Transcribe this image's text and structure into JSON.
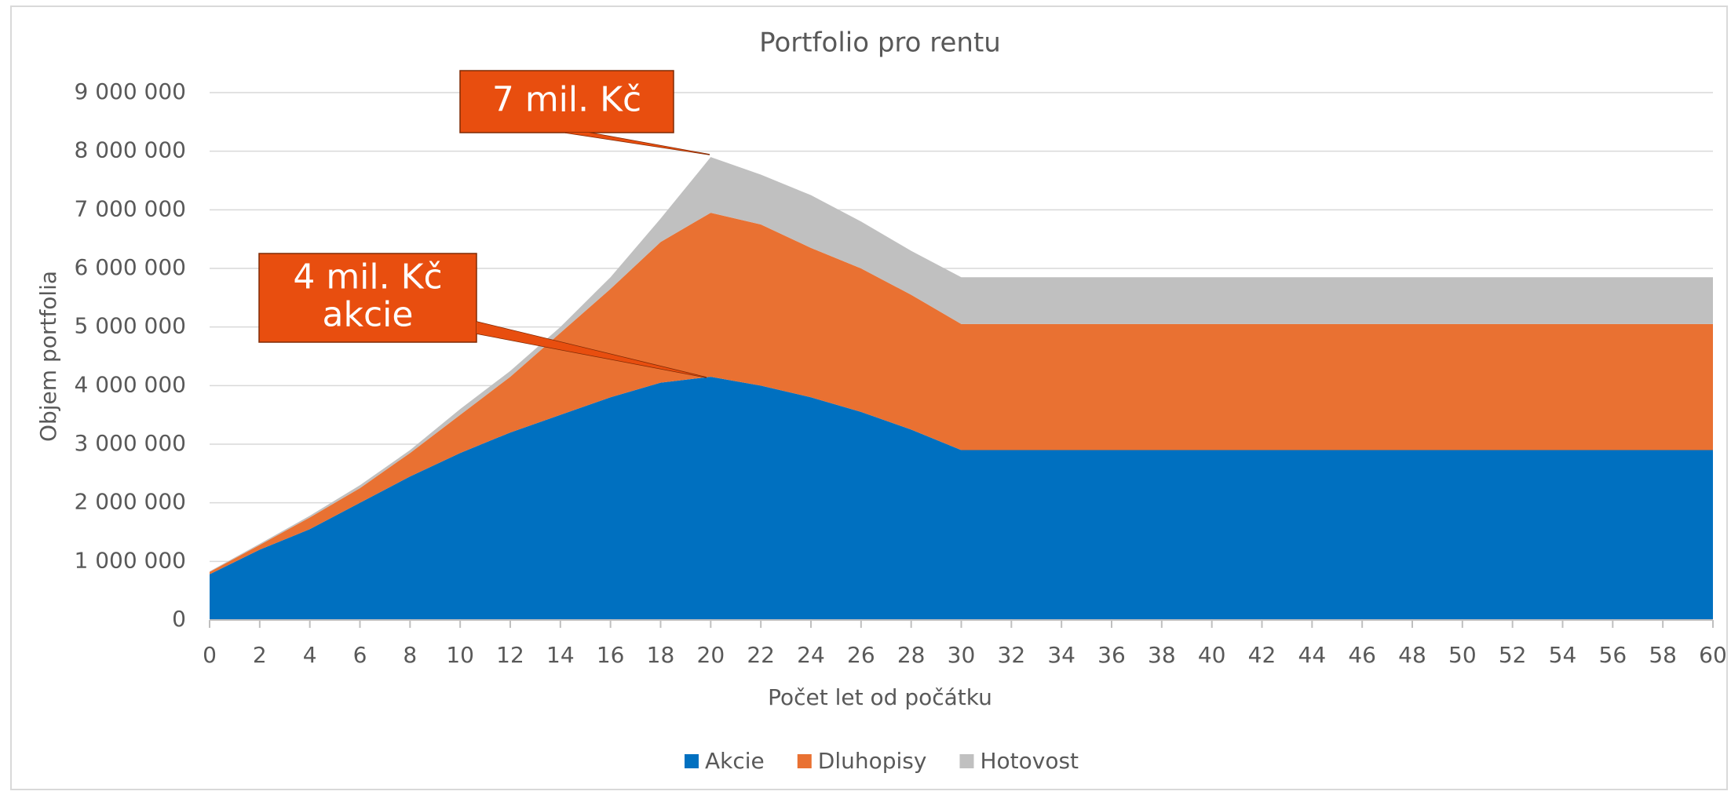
{
  "chart_data": {
    "type": "stacked_area",
    "title": "Portfolio pro rentu",
    "x_label": "Počet let od počátku",
    "y_label": "Objem portfolia",
    "x": [
      0,
      2,
      4,
      6,
      8,
      10,
      12,
      14,
      16,
      18,
      20,
      22,
      24,
      26,
      28,
      30,
      32,
      34,
      36,
      38,
      40,
      42,
      44,
      46,
      48,
      50,
      52,
      54,
      56,
      58,
      60
    ],
    "series": [
      {
        "name": "Akcie",
        "color": "#0070c0",
        "values": [
          780000,
          1200000,
          1550000,
          2000000,
          2450000,
          2850000,
          3200000,
          3500000,
          3800000,
          4050000,
          4150000,
          4000000,
          3800000,
          3550000,
          3250000,
          2900000,
          2900000,
          2900000,
          2900000,
          2900000,
          2900000,
          2900000,
          2900000,
          2900000,
          2900000,
          2900000,
          2900000,
          2900000,
          2900000,
          2900000,
          2900000
        ]
      },
      {
        "name": "Dluhopisy",
        "color": "#e97132",
        "values": [
          40000,
          80000,
          200000,
          250000,
          400000,
          650000,
          950000,
          1400000,
          1850000,
          2400000,
          2800000,
          2750000,
          2550000,
          2450000,
          2300000,
          2150000,
          2150000,
          2150000,
          2150000,
          2150000,
          2150000,
          2150000,
          2150000,
          2150000,
          2150000,
          2150000,
          2150000,
          2150000,
          2150000,
          2150000,
          2150000
        ]
      },
      {
        "name": "Hotovost",
        "color": "#c0c0c0",
        "values": [
          10000,
          20000,
          30000,
          50000,
          50000,
          100000,
          100000,
          100000,
          200000,
          400000,
          950000,
          850000,
          900000,
          800000,
          750000,
          800000,
          800000,
          800000,
          800000,
          800000,
          800000,
          800000,
          800000,
          800000,
          800000,
          800000,
          800000,
          800000,
          800000,
          800000,
          800000
        ]
      }
    ],
    "xlim": [
      0,
      60
    ],
    "xticks": [
      0,
      2,
      4,
      6,
      8,
      10,
      12,
      14,
      16,
      18,
      20,
      22,
      24,
      26,
      28,
      30,
      32,
      34,
      36,
      38,
      40,
      42,
      44,
      46,
      48,
      50,
      52,
      54,
      56,
      58,
      60
    ],
    "ylim": [
      0,
      9000000
    ],
    "yticks": [
      0,
      {
        "value": 1000000,
        "label": "1 000 000"
      },
      {
        "value": 2000000,
        "label": "2 000 000"
      },
      {
        "value": 3000000,
        "label": "3 000 000"
      },
      {
        "value": 4000000,
        "label": "4 000 000"
      },
      {
        "value": 5000000,
        "label": "5 000 000"
      },
      {
        "value": 6000000,
        "label": "6 000 000"
      },
      {
        "value": 7000000,
        "label": "7 000 000"
      },
      {
        "value": 8000000,
        "label": "8 000 000"
      },
      {
        "value": 9000000,
        "label": "9 000 000"
      }
    ],
    "grid": true,
    "legend": "bottom",
    "annotations": [
      {
        "lines": [
          "7 mil. Kč"
        ]
      },
      {
        "lines": [
          "4 mil. Kč",
          "akcie"
        ]
      }
    ]
  }
}
